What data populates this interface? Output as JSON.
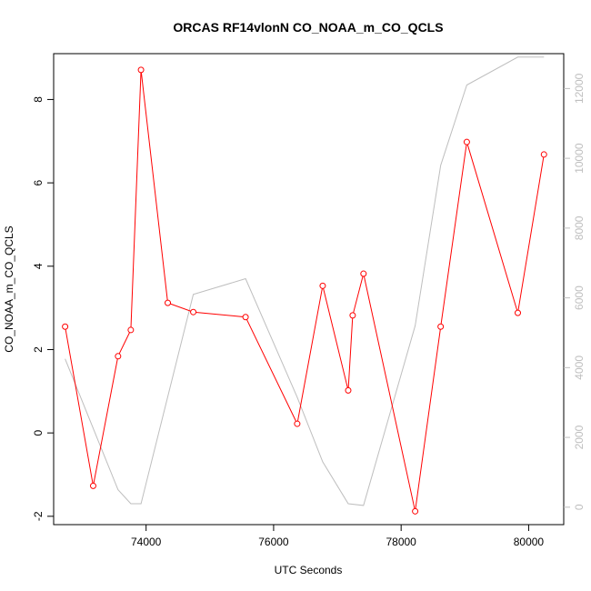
{
  "chart_data": {
    "type": "line",
    "title": "ORCAS RF14vlonN CO_NOAA_m_CO_QCLS",
    "xlabel": "UTC Seconds",
    "ylabel": "CO_NOAA_m_CO_QCLS",
    "xlim": [
      72550,
      80550
    ],
    "ylim": [
      -2.2,
      9.1
    ],
    "y2lim": [
      -500,
      13000
    ],
    "x_ticks": [
      74000,
      76000,
      78000,
      80000
    ],
    "y_ticks": [
      -2,
      0,
      2,
      4,
      6,
      8
    ],
    "y2_ticks": [
      0,
      2000,
      4000,
      6000,
      8000,
      10000,
      12000
    ],
    "grid": false,
    "series": [
      {
        "color": "#ff0000",
        "marker": "circle-open",
        "axis": "left",
        "x": [
          72730,
          73170,
          73560,
          73760,
          73920,
          74340,
          74740,
          75560,
          76370,
          76770,
          77170,
          77240,
          77410,
          78220,
          78620,
          79030,
          79830,
          80240
        ],
        "y": [
          2.55,
          -1.27,
          1.84,
          2.47,
          8.71,
          3.12,
          2.9,
          2.78,
          0.22,
          3.53,
          1.02,
          2.82,
          3.82,
          -1.88,
          2.55,
          6.98,
          2.88,
          6.68
        ]
      },
      {
        "color": "#bebebe",
        "marker": "none",
        "axis": "right",
        "x": [
          72730,
          73560,
          73760,
          73920,
          74740,
          75560,
          76370,
          76770,
          77170,
          77410,
          78220,
          78620,
          79030,
          79830,
          80240
        ],
        "y": [
          4250,
          500,
          100,
          100,
          6100,
          6550,
          3150,
          1300,
          100,
          50,
          5200,
          9800,
          12100,
          12900,
          12900
        ]
      }
    ]
  }
}
